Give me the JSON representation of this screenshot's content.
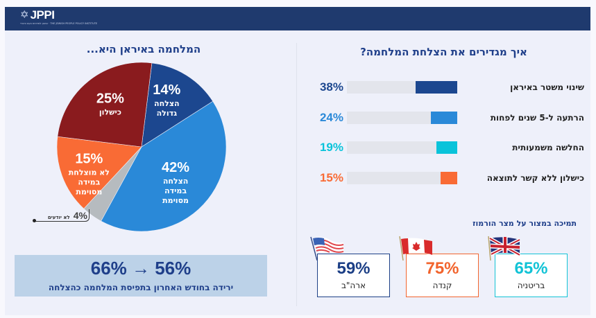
{
  "header": {
    "logo_text": "JPPI",
    "logo_subtitle": "המכון למדיניות העם היהודי · THE JEWISH PEOPLE POLICY INSTITUTE",
    "logo_icon": "star-of-david-icon"
  },
  "pie_panel": {
    "title": "המלחמה באיראן היא...",
    "callout": {
      "value": "4%",
      "label": "לא יודעים"
    },
    "drop": {
      "from": "66%",
      "arrow": "→",
      "to": "56%",
      "text": "66% → 56%",
      "label": "ירידה בחודש האחרון בתפיסת המלחמה כהצלחה"
    }
  },
  "bars_panel": {
    "title": "איך מגדירים את הצלחת המלחמה?",
    "rows": [
      {
        "value": 38,
        "value_text": "38%",
        "label": "שינוי משטר באיראן",
        "color": "#1c478f"
      },
      {
        "value": 24,
        "value_text": "24%",
        "label": "הרתעה ל-5 שנים לפחות",
        "color": "#2a89d8"
      },
      {
        "value": 19,
        "value_text": "19%",
        "label": "החלשה משמעותית",
        "color": "#09c3da"
      },
      {
        "value": 15,
        "value_text": "15%",
        "label": "כישלון ללא קשר לתוצאה",
        "color": "#f96b35"
      }
    ]
  },
  "hormuz": {
    "title": "תמיכה במצור על מצר הורמוז",
    "cards": [
      {
        "value": "59%",
        "label": "ארה\"ב",
        "color": "#1c3f86",
        "flag": "usa-flag-icon"
      },
      {
        "value": "75%",
        "label": "קנדה",
        "color": "#f2642d",
        "flag": "canada-flag-icon"
      },
      {
        "value": "65%",
        "label": "בריטניה",
        "color": "#12c3d6",
        "flag": "uk-flag-icon"
      }
    ]
  },
  "chart_data": [
    {
      "type": "pie",
      "title": "המלחמה באיראן היא...",
      "slices": [
        {
          "label": "הצלחה גדולה",
          "lines": [
            "הצלחה",
            "גדולה"
          ],
          "value": 14,
          "value_text": "14%",
          "color": "#1c478f"
        },
        {
          "label": "הצלחה במידה מסוימת",
          "lines": [
            "הצלחה",
            "במידה",
            "מסוימת"
          ],
          "value": 42,
          "value_text": "42%",
          "color": "#2a89d8"
        },
        {
          "label": "לא יודעים",
          "lines": [],
          "value": 4,
          "value_text": "4%",
          "color": "#b6bbbf"
        },
        {
          "label": "לא מוצלחת במידה מסוימת",
          "lines": [
            "לא מוצלחת",
            "במידה",
            "מסוימת"
          ],
          "value": 15,
          "value_text": "15%",
          "color": "#f96b35"
        },
        {
          "label": "כישלון",
          "lines": [
            "כישלון"
          ],
          "value": 25,
          "value_text": "25%",
          "color": "#8a1b1e"
        }
      ],
      "order": "clockwise"
    },
    {
      "type": "bar",
      "orientation": "horizontal",
      "title": "איך מגדירים את הצלחת המלחמה?",
      "categories": [
        "שינוי משטר באיראן",
        "הרתעה ל-5 שנים לפחות",
        "החלשה משמעותית",
        "כישלון ללא קשר לתוצאה"
      ],
      "values": [
        38,
        24,
        19,
        15
      ],
      "xlim": [
        0,
        100
      ]
    },
    {
      "type": "table",
      "title": "תמיכה במצור על מצר הורמוז",
      "categories": [
        "ארה\"ב",
        "קנדה",
        "בריטניה"
      ],
      "values": [
        59,
        75,
        65
      ]
    }
  ]
}
